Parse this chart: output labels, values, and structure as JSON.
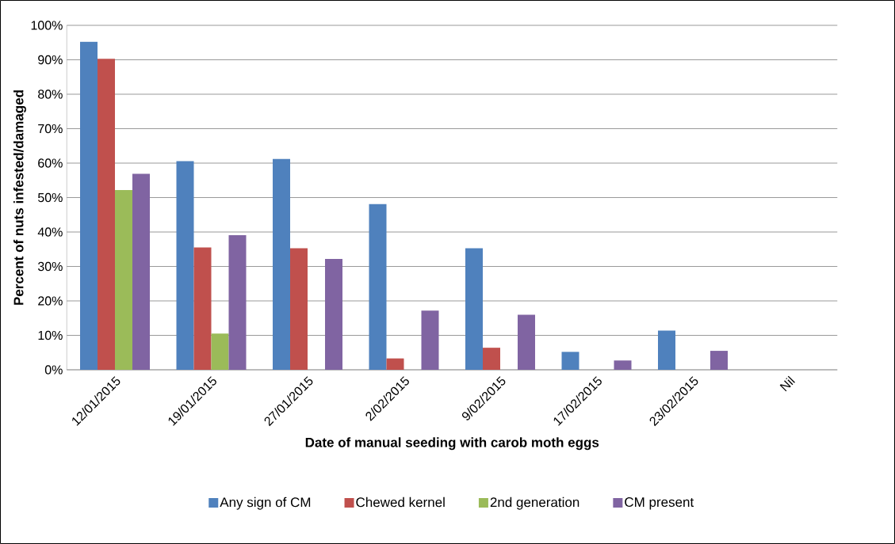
{
  "chart_data": {
    "type": "bar",
    "xlabel": "Date of manual seeding with carob moth eggs",
    "ylabel": "Percent of nuts infested/damaged",
    "categories": [
      "12/01/2015",
      "19/01/2015",
      "27/01/2015",
      "2/02/2015",
      "9/02/2015",
      "17/02/2015",
      "23/02/2015",
      "Nil"
    ],
    "series": [
      {
        "name": "Any sign of CM",
        "color": "#4f81bd",
        "values": [
          95.2,
          60.6,
          61.2,
          48.1,
          35.3,
          5.2,
          11.4,
          0
        ]
      },
      {
        "name": "Chewed kernel",
        "color": "#c0504d",
        "values": [
          90.3,
          35.5,
          35.3,
          3.3,
          6.4,
          0,
          0,
          0
        ]
      },
      {
        "name": "2nd generation",
        "color": "#9bbb59",
        "values": [
          52.2,
          10.5,
          0,
          0,
          0,
          0,
          0,
          0
        ]
      },
      {
        "name": "CM present",
        "color": "#8064a2",
        "values": [
          56.9,
          39.1,
          32.2,
          17.2,
          16.0,
          2.7,
          5.5,
          0
        ]
      }
    ],
    "ylim": [
      0,
      100
    ],
    "yticks": [
      {
        "value": 0,
        "label": "0%"
      },
      {
        "value": 10,
        "label": "10%"
      },
      {
        "value": 20,
        "label": "20%"
      },
      {
        "value": 30,
        "label": "30%"
      },
      {
        "value": 40,
        "label": "40%"
      },
      {
        "value": 50,
        "label": "50%"
      },
      {
        "value": 60,
        "label": "60%"
      },
      {
        "value": 70,
        "label": "70%"
      },
      {
        "value": 80,
        "label": "80%"
      },
      {
        "value": 90,
        "label": "90%"
      },
      {
        "value": 100,
        "label": "100%"
      }
    ],
    "grid": "y",
    "legend": "bottom"
  }
}
